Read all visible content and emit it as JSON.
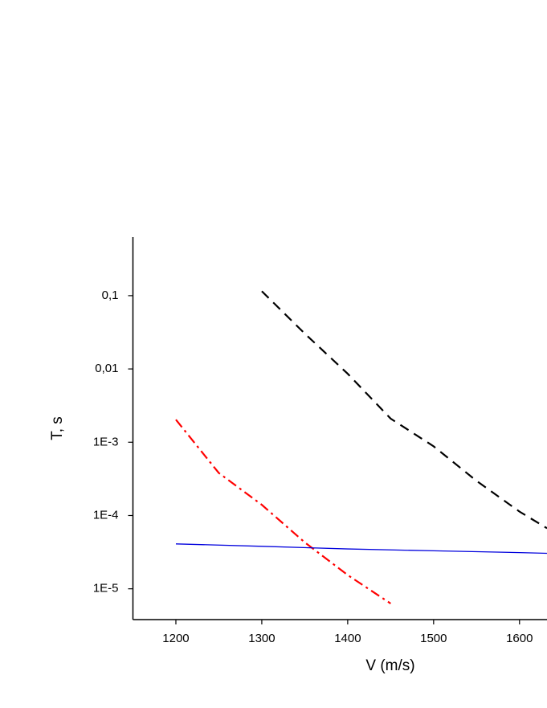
{
  "chart_data": {
    "type": "line",
    "x_label": "V (m/s)",
    "y_label": "T, s",
    "xlim": [
      1150,
      1632
    ],
    "xticks": [
      1200,
      1300,
      1400,
      1500,
      1600
    ],
    "ylim": [
      3.8e-06,
      0.63
    ],
    "yscale": "log",
    "yticks": [
      {
        "value": 0.1,
        "label": "0,1"
      },
      {
        "value": 0.01,
        "label": "0,01"
      },
      {
        "value": 0.001,
        "label": "1E-3"
      },
      {
        "value": 0.0001,
        "label": "1E-4"
      },
      {
        "value": 1e-05,
        "label": "1E-5"
      }
    ],
    "series": [
      {
        "color": "#000000",
        "dash": "dashed",
        "x": [
          1300,
          1350,
          1400,
          1450,
          1500,
          1550,
          1600,
          1632
        ],
        "values": [
          0.115,
          0.0304,
          0.0086,
          0.0021,
          0.00088,
          0.000297,
          0.000113,
          6.7e-05
        ]
      },
      {
        "color": "#ff0000",
        "dash": "dash-dot",
        "x": [
          1200,
          1250,
          1300,
          1350,
          1400,
          1450
        ],
        "values": [
          0.00203,
          0.00038,
          0.00014,
          4.3e-05,
          1.54e-05,
          6.3e-06
        ]
      },
      {
        "color": "#0000dd",
        "dash": "solid",
        "x": [
          1200,
          1300,
          1400,
          1500,
          1600,
          1632
        ],
        "values": [
          4.1e-05,
          3.8e-05,
          3.5e-05,
          3.3e-05,
          3.12e-05,
          3.05e-05
        ]
      }
    ]
  }
}
